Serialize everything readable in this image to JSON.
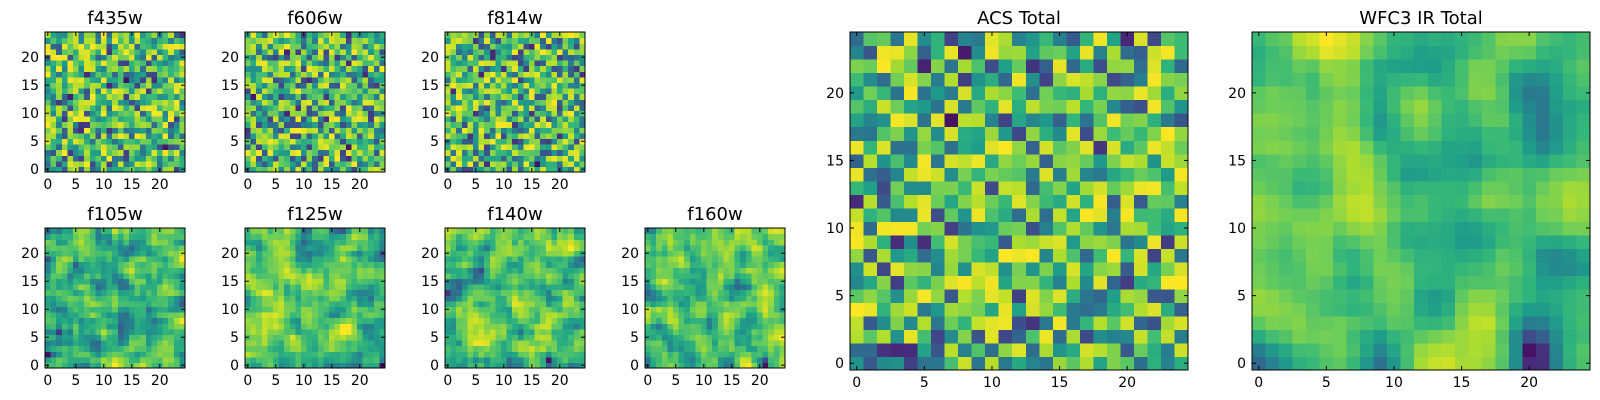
{
  "chart_data": [
    {
      "type": "heatmap",
      "title": "f435w",
      "xlim": [
        0,
        24
      ],
      "ylim": [
        0,
        24
      ],
      "x_ticks": [
        "0",
        "5",
        "10",
        "15",
        "20"
      ],
      "y_ticks": [
        "0",
        "5",
        "10",
        "15",
        "20"
      ],
      "colormap": "viridis",
      "seed": 11,
      "smooth": 0
    },
    {
      "type": "heatmap",
      "title": "f606w",
      "xlim": [
        0,
        24
      ],
      "ylim": [
        0,
        24
      ],
      "x_ticks": [
        "0",
        "5",
        "10",
        "15",
        "20"
      ],
      "y_ticks": [
        "0",
        "5",
        "10",
        "15",
        "20"
      ],
      "colormap": "viridis",
      "seed": 23,
      "smooth": 0
    },
    {
      "type": "heatmap",
      "title": "f814w",
      "xlim": [
        0,
        24
      ],
      "ylim": [
        0,
        24
      ],
      "x_ticks": [
        "0",
        "5",
        "10",
        "15",
        "20"
      ],
      "y_ticks": [
        "0",
        "5",
        "10",
        "15",
        "20"
      ],
      "colormap": "viridis",
      "seed": 37,
      "smooth": 0
    },
    {
      "type": "heatmap",
      "title": "f105w",
      "xlim": [
        0,
        24
      ],
      "ylim": [
        0,
        24
      ],
      "x_ticks": [
        "0",
        "5",
        "10",
        "15",
        "20"
      ],
      "y_ticks": [
        "0",
        "5",
        "10",
        "15",
        "20"
      ],
      "colormap": "viridis",
      "seed": 41,
      "smooth": 1
    },
    {
      "type": "heatmap",
      "title": "f125w",
      "xlim": [
        0,
        24
      ],
      "ylim": [
        0,
        24
      ],
      "x_ticks": [
        "0",
        "5",
        "10",
        "15",
        "20"
      ],
      "y_ticks": [
        "0",
        "5",
        "10",
        "15",
        "20"
      ],
      "colormap": "viridis",
      "seed": 53,
      "smooth": 1
    },
    {
      "type": "heatmap",
      "title": "f140w",
      "xlim": [
        0,
        24
      ],
      "ylim": [
        0,
        24
      ],
      "x_ticks": [
        "0",
        "5",
        "10",
        "15",
        "20"
      ],
      "y_ticks": [
        "0",
        "5",
        "10",
        "15",
        "20"
      ],
      "colormap": "viridis",
      "seed": 67,
      "smooth": 1
    },
    {
      "type": "heatmap",
      "title": "f160w",
      "xlim": [
        0,
        24
      ],
      "ylim": [
        0,
        24
      ],
      "x_ticks": [
        "0",
        "5",
        "10",
        "15",
        "20"
      ],
      "y_ticks": [
        "0",
        "5",
        "10",
        "15",
        "20"
      ],
      "colormap": "viridis",
      "seed": 79,
      "smooth": 1
    },
    {
      "type": "heatmap",
      "title": "ACS Total",
      "xlim": [
        0,
        24
      ],
      "ylim": [
        0,
        24
      ],
      "x_ticks": [
        "0",
        "5",
        "10",
        "15",
        "20"
      ],
      "y_ticks": [
        "0",
        "5",
        "10",
        "15",
        "20"
      ],
      "colormap": "viridis",
      "seed": 97,
      "smooth": 0
    },
    {
      "type": "heatmap",
      "title": "WFC3 IR Total",
      "xlim": [
        0,
        24
      ],
      "ylim": [
        0,
        24
      ],
      "x_ticks": [
        "0",
        "5",
        "10",
        "15",
        "20"
      ],
      "y_ticks": [
        "0",
        "5",
        "10",
        "15",
        "20"
      ],
      "colormap": "viridis",
      "seed": 131,
      "smooth": 2
    }
  ]
}
